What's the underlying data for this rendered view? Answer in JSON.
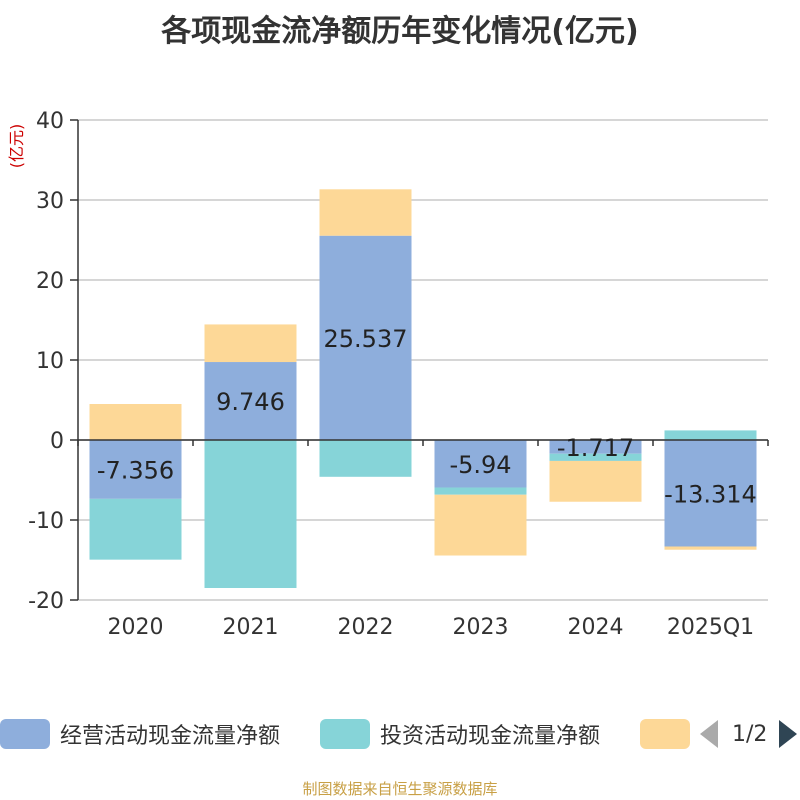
{
  "title": "各项现金流净额历年变化情况(亿元)",
  "source": "制图数据来自恒生聚源数据库",
  "chart_data": {
    "type": "bar",
    "stacked": true,
    "categories": [
      "2020",
      "2021",
      "2022",
      "2023",
      "2024",
      "2025Q1"
    ],
    "ylabel": "(亿元)",
    "ylim": [
      -20,
      40
    ],
    "yticks": [
      -20,
      -10,
      0,
      10,
      20,
      30,
      40
    ],
    "grid": true,
    "series": [
      {
        "name": "经营活动现金流量净额",
        "color": "#8eaedc",
        "values": [
          -7.356,
          9.746,
          25.537,
          -5.94,
          -1.717,
          -13.314
        ],
        "labels": [
          "-7.356",
          "9.746",
          "25.537",
          "-5.94",
          "-1.717",
          "-13.314"
        ]
      },
      {
        "name": "投资活动现金流量净额",
        "color": "#86d4d8",
        "values": [
          -7.6,
          -18.5,
          -4.6,
          -0.9,
          -0.9,
          1.2
        ]
      },
      {
        "name": "",
        "color": "#fdd897",
        "values": [
          4.5,
          4.7,
          5.8,
          -7.6,
          -5.1,
          -0.4
        ]
      }
    ],
    "legend": {
      "placement": "bottom",
      "page": "1/2"
    }
  }
}
